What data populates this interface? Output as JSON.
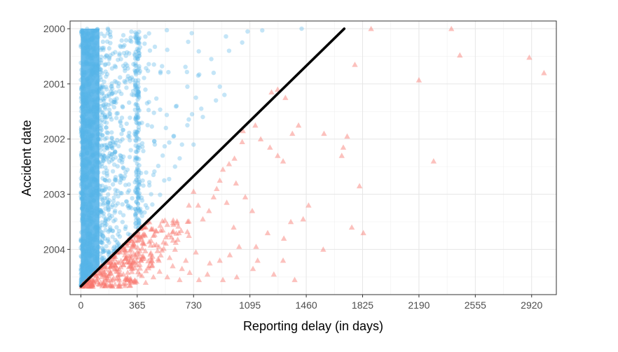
{
  "chart_data": {
    "type": "scatter",
    "title": "",
    "xlabel": "Reporting delay (in days)",
    "ylabel": "Accident date",
    "xlim": [
      -70,
      3080
    ],
    "ylim_years": [
      1999.86,
      2004.82
    ],
    "y_reversed": true,
    "x_ticks": [
      0,
      365,
      730,
      1095,
      1460,
      1825,
      2190,
      2555,
      2920
    ],
    "x_tick_labels": [
      "0",
      "365",
      "730",
      "1095",
      "1460",
      "1825",
      "2190",
      "2555",
      "2920"
    ],
    "y_ticks": [
      2000,
      2001,
      2002,
      2003,
      2004
    ],
    "y_tick_labels": [
      "2000",
      "2001",
      "2002",
      "2003",
      "2004"
    ],
    "grid": true,
    "legend": "none",
    "boundary_line": {
      "description": "x + years_since_2000*365 = 1706",
      "start": {
        "x": 0,
        "y": 2004.67
      },
      "end": {
        "x": 1706,
        "y": 2000.0
      }
    },
    "series": [
      {
        "marker": "circle",
        "color": "#56B4E9",
        "opacity": 0.35,
        "points": [
          [
            1430,
            2000.0
          ],
          [
            1175,
            2000.03
          ],
          [
            1080,
            2000.05
          ],
          [
            940,
            2000.14
          ],
          [
            1045,
            2000.25
          ],
          [
            960,
            2000.4
          ],
          [
            845,
            2000.55
          ],
          [
            760,
            2000.85
          ],
          [
            690,
            2001.05
          ],
          [
            930,
            2001.2
          ],
          [
            875,
            2001.3
          ],
          [
            780,
            2001.45
          ],
          [
            720,
            2001.55
          ],
          [
            690,
            2001.75
          ],
          [
            600,
            2001.95
          ],
          [
            655,
            2002.1
          ],
          [
            530,
            2002.3
          ],
          [
            610,
            2002.5
          ],
          [
            470,
            2002.65
          ],
          [
            540,
            2002.75
          ],
          [
            455,
            2003.0
          ],
          [
            420,
            2003.2
          ],
          [
            380,
            2003.3
          ],
          [
            730,
            2002.1
          ],
          [
            745,
            2001.25
          ],
          [
            790,
            2001.6
          ],
          [
            860,
            2000.8
          ],
          [
            900,
            2001.05
          ],
          [
            620,
            2001.4
          ],
          [
            640,
            2002.35
          ]
        ]
      },
      {
        "marker": "triangle",
        "color": "#F8766D",
        "opacity": 0.45,
        "points": [
          [
            1880,
            2000.0
          ],
          [
            2400,
            2000.0
          ],
          [
            2455,
            2000.48
          ],
          [
            2905,
            2000.52
          ],
          [
            3000,
            2000.8
          ],
          [
            1775,
            2000.65
          ],
          [
            2190,
            2000.93
          ],
          [
            1235,
            2001.15
          ],
          [
            1275,
            2001.1
          ],
          [
            1325,
            2001.25
          ],
          [
            1410,
            2001.75
          ],
          [
            1370,
            2001.9
          ],
          [
            1575,
            2001.9
          ],
          [
            1165,
            2002.0
          ],
          [
            1130,
            2001.75
          ],
          [
            1050,
            2001.85
          ],
          [
            1045,
            2002.05
          ],
          [
            1225,
            2002.15
          ],
          [
            1275,
            2002.3
          ],
          [
            1310,
            2002.4
          ],
          [
            1725,
            2001.95
          ],
          [
            1700,
            2002.15
          ],
          [
            1690,
            2002.3
          ],
          [
            2285,
            2002.4
          ],
          [
            1805,
            2002.85
          ],
          [
            1755,
            2003.6
          ],
          [
            1830,
            2003.7
          ],
          [
            1475,
            2003.2
          ],
          [
            1440,
            2003.45
          ],
          [
            1360,
            2003.5
          ],
          [
            1315,
            2003.8
          ],
          [
            1210,
            2003.7
          ],
          [
            1135,
            2003.95
          ],
          [
            1025,
            2003.95
          ],
          [
            965,
            2004.1
          ],
          [
            900,
            2004.2
          ],
          [
            835,
            2004.25
          ],
          [
            820,
            2004.45
          ],
          [
            920,
            2004.55
          ],
          [
            1010,
            2004.5
          ],
          [
            1115,
            2004.35
          ],
          [
            1250,
            2004.45
          ],
          [
            1145,
            2004.2
          ],
          [
            1310,
            2004.2
          ],
          [
            1385,
            2004.55
          ],
          [
            1570,
            2004.0
          ],
          [
            765,
            2004.55
          ],
          [
            705,
            2004.42
          ],
          [
            680,
            2004.2
          ],
          [
            655,
            2004.35
          ],
          [
            745,
            2004.05
          ],
          [
            610,
            2004.0
          ],
          [
            595,
            2004.3
          ],
          [
            560,
            2004.5
          ],
          [
            510,
            2004.4
          ],
          [
            470,
            2004.5
          ],
          [
            420,
            2004.6
          ],
          [
            390,
            2004.2
          ],
          [
            455,
            2004.15
          ],
          [
            365,
            2004.05
          ],
          [
            345,
            2003.95
          ],
          [
            330,
            2004.35
          ],
          [
            300,
            2004.55
          ],
          [
            275,
            2004.45
          ],
          [
            250,
            2004.62
          ],
          [
            225,
            2004.3
          ],
          [
            205,
            2004.55
          ],
          [
            180,
            2004.48
          ],
          [
            160,
            2004.64
          ],
          [
            130,
            2004.6
          ],
          [
            320,
            2004.65
          ],
          [
            285,
            2004.1
          ],
          [
            410,
            2003.9
          ],
          [
            470,
            2003.75
          ],
          [
            505,
            2003.95
          ],
          [
            530,
            2003.65
          ],
          [
            560,
            2003.55
          ],
          [
            600,
            2003.55
          ],
          [
            635,
            2003.7
          ],
          [
            700,
            2003.75
          ],
          [
            790,
            2003.45
          ],
          [
            760,
            2003.2
          ],
          [
            830,
            2003.3
          ],
          [
            860,
            2003.05
          ],
          [
            900,
            2002.75
          ],
          [
            960,
            2002.45
          ],
          [
            995,
            2002.35
          ],
          [
            920,
            2002.55
          ],
          [
            700,
            2003.2
          ],
          [
            730,
            2002.95
          ],
          [
            880,
            2002.9
          ],
          [
            945,
            2003.15
          ],
          [
            1005,
            2002.8
          ],
          [
            1065,
            2003.05
          ],
          [
            1110,
            2003.3
          ],
          [
            990,
            2003.6
          ],
          [
            640,
            2004.55
          ],
          [
            575,
            2004.15
          ],
          [
            505,
            2004.2
          ],
          [
            440,
            2004.3
          ],
          [
            380,
            2004.45
          ],
          [
            350,
            2004.6
          ],
          [
            240,
            2004.4
          ],
          [
            195,
            2004.3
          ]
        ]
      }
    ]
  }
}
